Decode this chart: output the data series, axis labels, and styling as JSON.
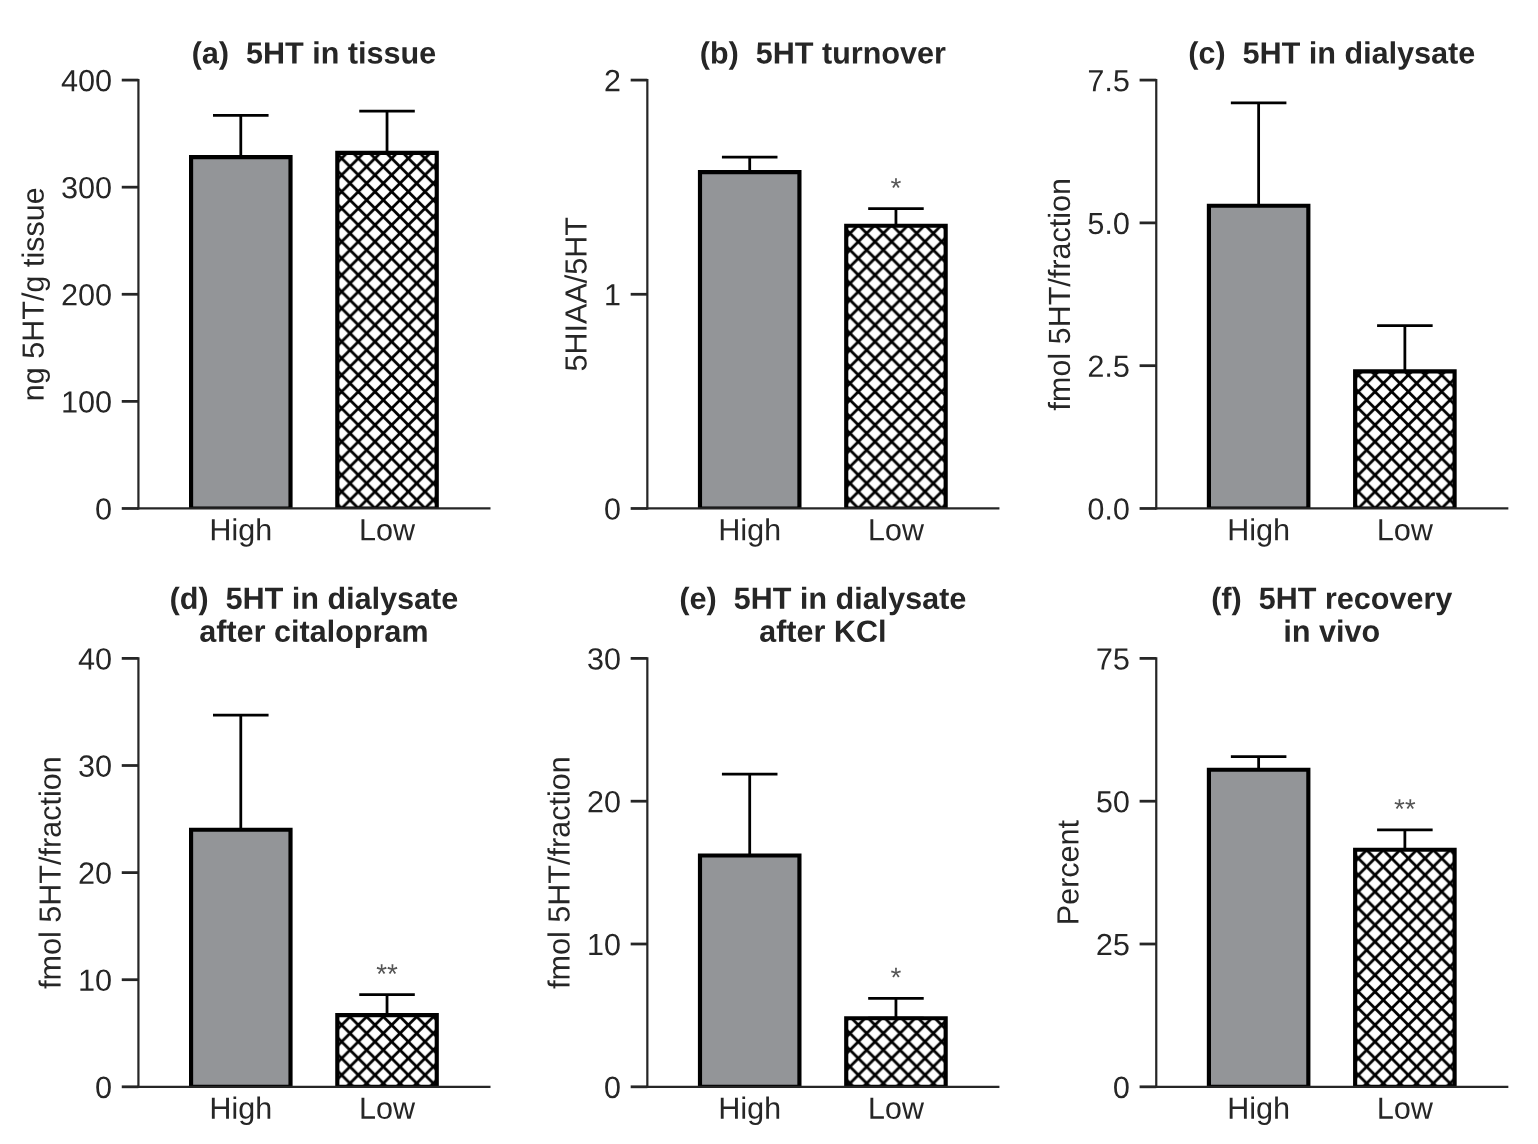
{
  "chart_data": [
    {
      "type": "bar",
      "title": "(a)  5HT in tissue",
      "ylabel": "ng 5HT/g tissue",
      "categories": [
        "High",
        "Low"
      ],
      "values": [
        328,
        332
      ],
      "errors": [
        [
          328,
          367
        ],
        [
          332,
          371
        ]
      ],
      "colors": [
        "#939598",
        "#000000"
      ],
      "ylim": [
        0,
        400
      ],
      "yticks": [
        0,
        100,
        200,
        300,
        400
      ],
      "grid": false,
      "legend": false
    },
    {
      "type": "bar",
      "title": "(b)  5HT turnover",
      "ylabel": "5HIAA/5HT",
      "categories": [
        "High",
        "Low"
      ],
      "values": [
        1.57,
        1.32
      ],
      "errors": [
        [
          1.57,
          1.64
        ],
        [
          1.32,
          1.4
        ]
      ],
      "colors": [
        "#939598",
        "#000000"
      ],
      "ylim": [
        0,
        2
      ],
      "yticks": [
        0,
        1,
        2
      ],
      "annotations": [
        {
          "text": "*",
          "x": "Low",
          "y": 1.4
        }
      ],
      "grid": false,
      "legend": false
    },
    {
      "type": "bar",
      "title": "(c)  5HT in dialysate",
      "ylabel": "fmol 5HT/fraction",
      "categories": [
        "High",
        "Low"
      ],
      "values": [
        5.3,
        2.4
      ],
      "errors": [
        [
          5.3,
          7.1
        ],
        [
          2.4,
          3.2
        ]
      ],
      "colors": [
        "#939598",
        "#000000"
      ],
      "ylim": [
        0,
        7.5
      ],
      "yticks": [
        {
          "value": 0,
          "label": "0.0"
        },
        {
          "value": 2.5,
          "label": "2.5"
        },
        {
          "value": 5,
          "label": "5.0"
        },
        {
          "value": 7.5,
          "label": "7.5"
        }
      ],
      "grid": false,
      "legend": false
    },
    {
      "type": "bar",
      "title": "(d)  5HT in dialysate\nafter citalopram",
      "ylabel": "fmol 5HT/fraction",
      "categories": [
        "High",
        "Low"
      ],
      "values": [
        24,
        6.7
      ],
      "errors": [
        [
          24,
          34.7
        ],
        [
          6.7,
          8.6
        ]
      ],
      "colors": [
        "#939598",
        "#000000"
      ],
      "ylim": [
        0,
        40
      ],
      "yticks": [
        0,
        10,
        20,
        30,
        40
      ],
      "annotations": [
        {
          "text": "**",
          "x": "Low",
          "y": 8.6
        }
      ],
      "grid": false,
      "legend": false
    },
    {
      "type": "bar",
      "title": "(e)  5HT in dialysate\nafter KCl",
      "ylabel": "fmol 5HT/fraction",
      "categories": [
        "High",
        "Low"
      ],
      "values": [
        16.2,
        4.8
      ],
      "errors": [
        [
          16.2,
          21.9
        ],
        [
          4.8,
          6.2
        ]
      ],
      "colors": [
        "#939598",
        "#000000"
      ],
      "ylim": [
        0,
        30
      ],
      "yticks": [
        0,
        10,
        20,
        30
      ],
      "annotations": [
        {
          "text": "*",
          "x": "Low",
          "y": 6.2
        }
      ],
      "grid": false,
      "legend": false
    },
    {
      "type": "bar",
      "title": "(f)  5HT recovery\nin vivo",
      "ylabel": "Percent",
      "categories": [
        "High",
        "Low"
      ],
      "values": [
        55.5,
        41.5
      ],
      "errors": [
        [
          55.5,
          57.8
        ],
        [
          41.5,
          45
        ]
      ],
      "colors": [
        "#939598",
        "#000000"
      ],
      "ylim": [
        0,
        75
      ],
      "yticks": [
        0,
        25,
        50,
        75
      ],
      "annotations": [
        {
          "text": "**",
          "x": "Low",
          "y": 45
        }
      ],
      "grid": false,
      "legend": false
    }
  ]
}
